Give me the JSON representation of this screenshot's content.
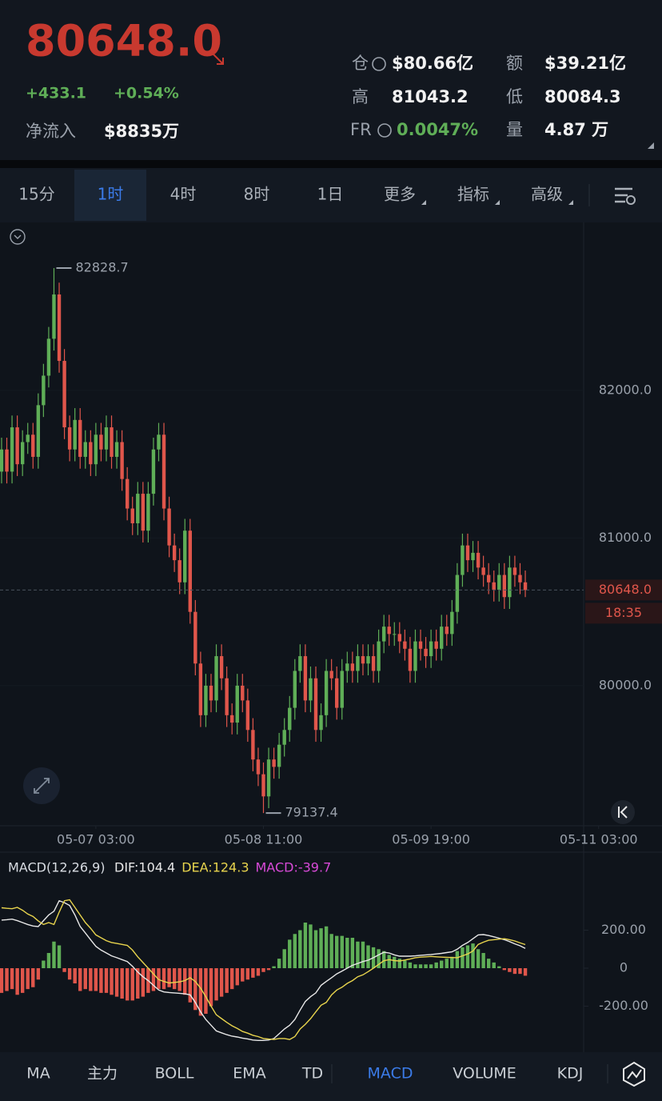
{
  "header": {
    "price": "80648.0",
    "change": "+433.1",
    "change_pct": "+0.54%",
    "inflow_label": "净流入",
    "inflow_value": "$8835万"
  },
  "stats": [
    {
      "label": "仓",
      "value": "$80.66亿"
    },
    {
      "label": "额",
      "value": "$39.21亿"
    },
    {
      "label": "高",
      "value": "81043.2"
    },
    {
      "label": "低",
      "value": "80084.3"
    },
    {
      "label": "FR",
      "value": "0.0047%"
    },
    {
      "label": "量",
      "value": "4.87 万"
    }
  ],
  "timeframes": [
    "15分",
    "1时",
    "4时",
    "8时",
    "1日",
    "更多",
    "指标",
    "高级"
  ],
  "indicators": [
    "MA",
    "主力",
    "BOLL",
    "EMA",
    "TD",
    "MACD",
    "VOLUME",
    "KDJ"
  ],
  "chart_data": [
    {
      "type": "candlestick",
      "up_color": "#5fae57",
      "down_color": "#e0564b",
      "candles": {
        "open": [
          81450,
          81600,
          81450,
          81750,
          81500,
          81650,
          81700,
          81550,
          81900,
          82100,
          82350,
          82650,
          82200,
          81750,
          81600,
          81800,
          81550,
          81650,
          81500,
          81700,
          81600,
          81750,
          81550,
          81650,
          81400,
          81200,
          81100,
          81300,
          81050,
          81300,
          81600,
          81700,
          81200,
          80950,
          80850,
          80700,
          81050,
          80500,
          80150,
          79800,
          80000,
          79900,
          80200,
          80050,
          79800,
          79750,
          80000,
          79900,
          79700,
          79500,
          79400,
          79250,
          79500,
          79450,
          79600,
          79700,
          79850,
          80100,
          80200,
          79900,
          80050,
          79700,
          79800,
          80100,
          80050,
          79850,
          80100,
          80150,
          80100,
          80200,
          80150,
          80200,
          80100,
          80300,
          80400,
          80350,
          80350,
          80300,
          80250,
          80100,
          80300,
          80250,
          80200,
          80300,
          80250,
          80400,
          80350,
          80500,
          80750,
          80950,
          80850,
          80900,
          80800,
          80750,
          80700,
          80650,
          80750,
          80600,
          80800,
          80750,
          80700
        ],
        "high": [
          81680,
          81680,
          81830,
          81830,
          81730,
          81780,
          81780,
          81980,
          82180,
          82430,
          82828.7,
          82730,
          82280,
          81830,
          81880,
          81880,
          81730,
          81730,
          81780,
          81780,
          81830,
          81830,
          81730,
          81730,
          81480,
          81280,
          81380,
          81380,
          81380,
          81680,
          81780,
          81780,
          81280,
          81030,
          80930,
          81130,
          81130,
          80580,
          80230,
          80080,
          80080,
          80280,
          80280,
          80130,
          79880,
          80080,
          80080,
          79980,
          79780,
          79580,
          79480,
          79580,
          79580,
          79680,
          79780,
          79930,
          80180,
          80280,
          80280,
          80130,
          80130,
          79880,
          80180,
          80180,
          80130,
          80180,
          80230,
          80230,
          80280,
          80280,
          80280,
          80280,
          80380,
          80480,
          80480,
          80430,
          80430,
          80380,
          80330,
          80380,
          80380,
          80330,
          80380,
          80380,
          80480,
          80480,
          80580,
          80830,
          81030,
          81030,
          80980,
          80980,
          80880,
          80830,
          80780,
          80830,
          80830,
          80880,
          80880,
          80830,
          80780
        ],
        "low": [
          81370,
          81370,
          81370,
          81420,
          81420,
          81570,
          81470,
          81470,
          81820,
          82020,
          82270,
          82120,
          81670,
          81520,
          81520,
          81470,
          81470,
          81420,
          81420,
          81520,
          81520,
          81470,
          81470,
          81320,
          81120,
          81020,
          81020,
          80970,
          80970,
          81220,
          81520,
          81120,
          80870,
          80770,
          80620,
          80620,
          80420,
          80070,
          79720,
          79720,
          79820,
          79820,
          79970,
          79720,
          79670,
          79670,
          79820,
          79620,
          79420,
          79320,
          79137.4,
          79170,
          79370,
          79370,
          79520,
          79620,
          79770,
          80020,
          79820,
          79820,
          79620,
          79620,
          79720,
          79970,
          79770,
          79770,
          80020,
          80020,
          80020,
          80070,
          80070,
          80020,
          80020,
          80220,
          80270,
          80270,
          80220,
          80170,
          80020,
          80020,
          80170,
          80120,
          80120,
          80170,
          80170,
          80270,
          80270,
          80420,
          80670,
          80770,
          80770,
          80720,
          80670,
          80620,
          80570,
          80570,
          80520,
          80520,
          80670,
          80620,
          80600
        ],
        "close": [
          81600,
          81450,
          81750,
          81500,
          81650,
          81700,
          81550,
          81900,
          82100,
          82350,
          82650,
          82200,
          81750,
          81600,
          81800,
          81550,
          81650,
          81500,
          81700,
          81600,
          81750,
          81550,
          81650,
          81400,
          81200,
          81100,
          81300,
          81050,
          81300,
          81600,
          81700,
          81200,
          80950,
          80850,
          80700,
          81050,
          80500,
          80150,
          79800,
          80000,
          79900,
          80200,
          80050,
          79800,
          79750,
          80000,
          79900,
          79700,
          79500,
          79400,
          79250,
          79500,
          79450,
          79600,
          79700,
          79850,
          80100,
          80200,
          79900,
          80050,
          79700,
          79800,
          80100,
          80050,
          79850,
          80100,
          80150,
          80100,
          80200,
          80150,
          80200,
          80100,
          80300,
          80400,
          80350,
          80350,
          80300,
          80250,
          80100,
          80300,
          80250,
          80200,
          80300,
          80250,
          80400,
          80350,
          80500,
          80750,
          80950,
          80850,
          80900,
          80800,
          80750,
          80700,
          80650,
          80750,
          80600,
          80800,
          80750,
          80700,
          80648
        ]
      },
      "xlim": [
        -0.3,
        126.1
      ],
      "xticks": [
        {
          "value": 18,
          "label": "05-07 03:00"
        },
        {
          "value": 50,
          "label": "05-08 11:00"
        },
        {
          "value": 82,
          "label": "05-09 19:00"
        },
        {
          "value": 114,
          "label": "05-11 03:00"
        }
      ],
      "ylim": [
        79062,
        83127
      ],
      "yticks": [
        {
          "value": 80000,
          "label": "80000.0"
        },
        {
          "value": 81000,
          "label": "81000.0"
        },
        {
          "value": 82000,
          "label": "82000.0"
        }
      ],
      "last_price_label": "80648.0",
      "countdown": "18:35"
    },
    {
      "type": "macd",
      "title": "MACD(12,26,9)",
      "xlim": [
        -0.3,
        126.1
      ],
      "ylim": [
        -442,
        400
      ],
      "yticks": [
        {
          "value": -200,
          "label": "-200.00"
        },
        0,
        {
          "value": 200,
          "label": "200.00"
        }
      ],
      "series": [
        {
          "name": "DIF:104.4",
          "kind": "line",
          "color": "#e8e8e8",
          "values": [
            253,
            255,
            258,
            250,
            240,
            230,
            222,
            219,
            250,
            280,
            300,
            355,
            345,
            330,
            280,
            220,
            185,
            150,
            115,
            95,
            80,
            65,
            55,
            45,
            35,
            10,
            -20,
            -45,
            -65,
            -90,
            -115,
            -125,
            -128,
            -130,
            -132,
            -135,
            -140,
            -180,
            -230,
            -270,
            -300,
            -330,
            -340,
            -350,
            -358,
            -362,
            -368,
            -372,
            -378,
            -380,
            -380,
            -378,
            -370,
            -345,
            -320,
            -300,
            -270,
            -220,
            -175,
            -150,
            -130,
            -90,
            -70,
            -50,
            -30,
            -15,
            0,
            15,
            25,
            35,
            42,
            55,
            70,
            84,
            80,
            70,
            63,
            63,
            63,
            65,
            68,
            70,
            72,
            75,
            78,
            82,
            86,
            100,
            120,
            135,
            155,
            175,
            177,
            172,
            165,
            158,
            150,
            140,
            128,
            118,
            104.4
          ]
        },
        {
          "name": "DEA:124.3",
          "kind": "line",
          "color": "#e8d44d",
          "values": [
            318,
            315,
            313,
            320,
            305,
            285,
            272,
            249,
            230,
            240,
            230,
            295,
            355,
            360,
            320,
            280,
            240,
            210,
            175,
            160,
            145,
            135,
            130,
            125,
            120,
            95,
            60,
            30,
            0,
            -30,
            -60,
            -70,
            -78,
            -75,
            -72,
            -65,
            -50,
            -70,
            -105,
            -150,
            -200,
            -245,
            -265,
            -285,
            -303,
            -317,
            -333,
            -342,
            -353,
            -360,
            -370,
            -373,
            -375,
            -370,
            -370,
            -375,
            -360,
            -320,
            -295,
            -265,
            -230,
            -195,
            -180,
            -140,
            -115,
            -100,
            -80,
            -65,
            -45,
            -35,
            -18,
            0,
            20,
            39,
            45,
            40,
            38,
            43,
            48,
            55,
            58,
            60,
            62,
            60,
            58,
            57,
            56,
            55,
            65,
            75,
            90,
            125,
            137,
            147,
            150,
            153,
            155,
            150,
            143,
            133,
            124.3
          ]
        },
        {
          "name": "MACD:-39.7",
          "kind": "bar",
          "color": "#d84ad8",
          "up_color": "#5fae57",
          "down_color": "#e0564b",
          "values": [
            -130,
            -120,
            -110,
            -140,
            -130,
            -110,
            -100,
            -60,
            40,
            80,
            140,
            120,
            -20,
            -60,
            -80,
            -120,
            -110,
            -120,
            -120,
            -130,
            -130,
            -140,
            -150,
            -160,
            -170,
            -170,
            -160,
            -150,
            -130,
            -120,
            -110,
            -110,
            -100,
            -110,
            -120,
            -140,
            -180,
            -220,
            -250,
            -240,
            -200,
            -170,
            -150,
            -130,
            -110,
            -90,
            -70,
            -60,
            -50,
            -40,
            -20,
            -10,
            10,
            50,
            100,
            150,
            180,
            200,
            240,
            230,
            200,
            210,
            220,
            180,
            170,
            170,
            160,
            160,
            140,
            140,
            120,
            110,
            100,
            90,
            70,
            60,
            50,
            40,
            30,
            20,
            20,
            20,
            20,
            30,
            40,
            50,
            60,
            90,
            110,
            120,
            130,
            100,
            80,
            50,
            30,
            10,
            -10,
            -20,
            -30,
            -30,
            -39.7
          ]
        }
      ]
    }
  ]
}
